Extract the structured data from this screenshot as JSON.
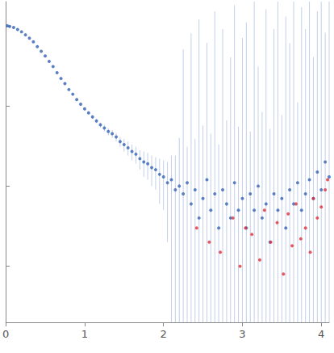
{
  "chart_data": {
    "type": "scatter",
    "log": "y",
    "grid": false,
    "tick_labels": "x",
    "xlim": [
      0,
      4.1
    ],
    "xticks": [
      0,
      1,
      2,
      3,
      4
    ],
    "ylim": [
      0.0002,
      2
    ],
    "yticks": [
      0.001,
      0.01,
      0.1,
      1
    ],
    "series": [
      {
        "color": "#3563b5",
        "marker": "circle",
        "x": [
          0.02,
          0.05,
          0.1,
          0.15,
          0.2,
          0.25,
          0.3,
          0.35,
          0.4,
          0.45,
          0.5,
          0.55,
          0.6,
          0.65,
          0.7,
          0.75,
          0.8,
          0.85,
          0.9,
          0.95,
          1.0,
          1.05,
          1.1,
          1.15,
          1.2,
          1.25,
          1.3,
          1.35,
          1.4,
          1.45,
          1.5,
          1.55,
          1.6,
          1.65,
          1.7,
          1.75,
          1.8,
          1.85,
          1.9,
          1.95,
          2.0,
          2.05,
          2.1,
          2.15,
          2.2,
          2.25,
          2.3,
          2.35,
          2.4,
          2.45,
          2.5,
          2.55,
          2.6,
          2.65,
          2.7,
          2.75,
          2.8,
          2.85,
          2.9,
          2.95,
          3.0,
          3.05,
          3.1,
          3.15,
          3.2,
          3.25,
          3.3,
          3.35,
          3.4,
          3.45,
          3.5,
          3.55,
          3.6,
          3.65,
          3.7,
          3.75,
          3.8,
          3.85,
          3.9,
          3.95,
          4.0,
          4.05,
          4.1
        ],
        "values": [
          1.0,
          0.98,
          0.95,
          0.9,
          0.84,
          0.77,
          0.7,
          0.63,
          0.55,
          0.48,
          0.42,
          0.36,
          0.31,
          0.26,
          0.22,
          0.19,
          0.16,
          0.14,
          0.12,
          0.105,
          0.092,
          0.082,
          0.073,
          0.065,
          0.058,
          0.053,
          0.048,
          0.045,
          0.041,
          0.036,
          0.033,
          0.03,
          0.027,
          0.025,
          0.022,
          0.02,
          0.019,
          0.017,
          0.016,
          0.014,
          0.013,
          0.011,
          0.012,
          0.009,
          0.01,
          0.008,
          0.011,
          0.006,
          0.009,
          0.004,
          0.007,
          0.012,
          0.005,
          0.008,
          0.003,
          0.009,
          0.006,
          0.004,
          0.011,
          0.005,
          0.007,
          0.003,
          0.008,
          0.005,
          0.01,
          0.004,
          0.006,
          0.002,
          0.008,
          0.005,
          0.007,
          0.003,
          0.009,
          0.006,
          0.011,
          0.005,
          0.008,
          0.012,
          0.007,
          0.015,
          0.009,
          0.02,
          0.013
        ],
        "errors": [
          0.01,
          0.01,
          0.01,
          0.009,
          0.008,
          0.008,
          0.007,
          0.007,
          0.006,
          0.006,
          0.006,
          0.005,
          0.005,
          0.005,
          0.005,
          0.004,
          0.004,
          0.004,
          0.004,
          0.004,
          0.004,
          0.004,
          0.004,
          0.004,
          0.004,
          0.005,
          0.005,
          0.005,
          0.005,
          0.005,
          0.006,
          0.006,
          0.006,
          0.006,
          0.006,
          0.007,
          0.007,
          0.007,
          0.007,
          0.008,
          0.008,
          0.009,
          0.012,
          0.015,
          0.03,
          0.5,
          0.02,
          0.8,
          0.03,
          1.2,
          0.05,
          0.6,
          0.04,
          1.5,
          0.03,
          0.9,
          0.06,
          0.4,
          1.8,
          0.05,
          0.7,
          1.1,
          0.04,
          2.0,
          0.3,
          0.08,
          1.6,
          0.05,
          0.9,
          2.0,
          0.07,
          1.3,
          0.6,
          2.0,
          0.1,
          1.7,
          0.9,
          2.0,
          0.4,
          1.5,
          2.0,
          0.8,
          2.0
        ]
      },
      {
        "color": "#e0303a",
        "marker": "circle",
        "x": [
          2.42,
          2.58,
          2.72,
          2.88,
          2.97,
          3.04,
          3.12,
          3.22,
          3.28,
          3.36,
          3.44,
          3.52,
          3.58,
          3.63,
          3.68,
          3.74,
          3.8,
          3.86,
          3.9,
          3.95,
          4.0,
          4.05,
          4.08
        ],
        "values": [
          0.003,
          0.002,
          0.0015,
          0.004,
          0.001,
          0.003,
          0.0025,
          0.0012,
          0.005,
          0.002,
          0.0035,
          0.0008,
          0.0045,
          0.0018,
          0.006,
          0.0022,
          0.003,
          0.0015,
          0.007,
          0.004,
          0.0055,
          0.009,
          0.012
        ]
      }
    ]
  }
}
